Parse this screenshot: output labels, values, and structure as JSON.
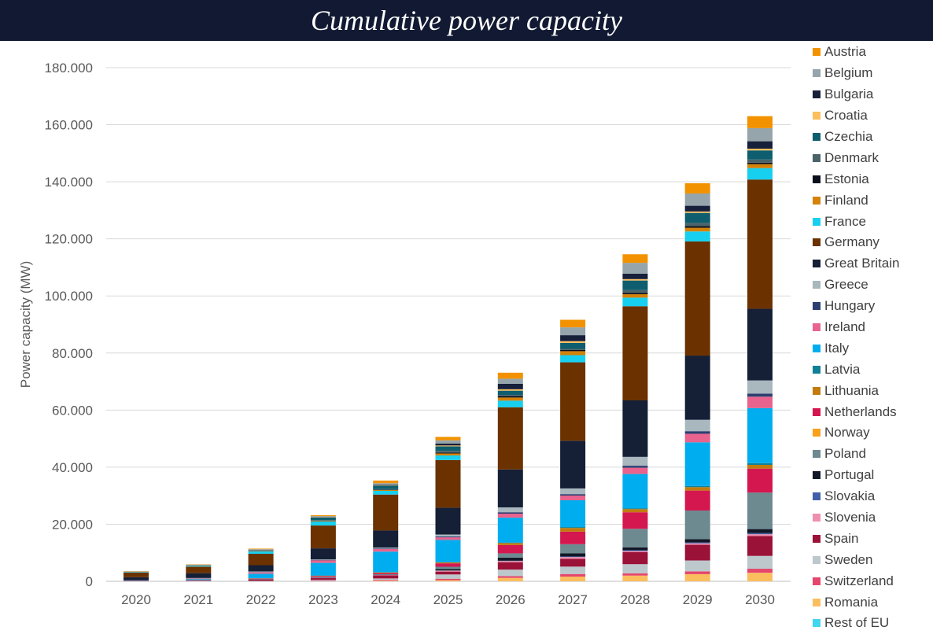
{
  "title": "Cumulative power capacity",
  "chart_data": {
    "type": "bar",
    "stacked": true,
    "title": "Cumulative power capacity",
    "xlabel": "",
    "ylabel": "Power capacity (MW)",
    "ylim": [
      0,
      180000
    ],
    "yticks": [
      0,
      20000,
      40000,
      60000,
      80000,
      100000,
      120000,
      140000,
      160000,
      180000
    ],
    "ytick_labels": [
      "0",
      "20.000",
      "40.000",
      "60.000",
      "80.000",
      "100.000",
      "120.000",
      "140.000",
      "160.000",
      "180.000"
    ],
    "grid": true,
    "legend_position": "right",
    "categories": [
      "2020",
      "2021",
      "2022",
      "2023",
      "2024",
      "2025",
      "2026",
      "2027",
      "2028",
      "2029",
      "2030"
    ],
    "series": [
      {
        "name": "Austria",
        "color": "#f39200",
        "values": [
          100,
          100,
          200,
          300,
          900,
          1200,
          2100,
          2650,
          3000,
          3600,
          4200
        ]
      },
      {
        "name": "Belgium",
        "color": "#95a5ab",
        "values": [
          100,
          100,
          250,
          300,
          600,
          1100,
          1800,
          2750,
          3800,
          4300,
          4600
        ]
      },
      {
        "name": "Bulgaria",
        "color": "#17203a",
        "values": [
          0,
          50,
          50,
          100,
          200,
          700,
          1900,
          2100,
          1900,
          2000,
          2600
        ]
      },
      {
        "name": "Croatia",
        "color": "#fbbf5d",
        "values": [
          0,
          0,
          50,
          100,
          100,
          300,
          500,
          600,
          500,
          500,
          600
        ]
      },
      {
        "name": "Czechia",
        "color": "#0e5e6f",
        "values": [
          0,
          0,
          100,
          900,
          1200,
          1600,
          1500,
          2100,
          3300,
          3500,
          3200
        ]
      },
      {
        "name": "Denmark",
        "color": "#4a6369",
        "values": [
          100,
          100,
          200,
          200,
          200,
          600,
          400,
          400,
          1000,
          1100,
          1100
        ]
      },
      {
        "name": "Estonia",
        "color": "#0b0f1c",
        "values": [
          0,
          50,
          50,
          100,
          100,
          300,
          500,
          400,
          500,
          600,
          500
        ]
      },
      {
        "name": "Finland",
        "color": "#d4820a",
        "values": [
          50,
          100,
          100,
          200,
          300,
          700,
          1100,
          1400,
          1200,
          1300,
          1400
        ]
      },
      {
        "name": "France",
        "color": "#17d0f0",
        "values": [
          150,
          300,
          800,
          1400,
          1300,
          1600,
          2300,
          2500,
          3000,
          3500,
          4000
        ]
      },
      {
        "name": "Germany",
        "color": "#6b3200",
        "values": [
          1600,
          2300,
          4000,
          8000,
          12600,
          16700,
          21800,
          27500,
          33000,
          40000,
          45300
        ]
      },
      {
        "name": "Great Britain",
        "color": "#151f36",
        "values": [
          1100,
          1700,
          2200,
          3900,
          6000,
          9400,
          13300,
          16700,
          19800,
          22500,
          25100
        ]
      },
      {
        "name": "Greece",
        "color": "#a9b7bf",
        "values": [
          50,
          100,
          200,
          200,
          300,
          700,
          1700,
          2000,
          3100,
          4000,
          4600
        ]
      },
      {
        "name": "Hungary",
        "color": "#2c3f70",
        "values": [
          0,
          100,
          100,
          100,
          200,
          300,
          500,
          500,
          700,
          900,
          1100
        ]
      },
      {
        "name": "Ireland",
        "color": "#e8638d",
        "values": [
          50,
          100,
          500,
          900,
          900,
          900,
          1400,
          1650,
          2200,
          3000,
          4000
        ]
      },
      {
        "name": "Italy",
        "color": "#00aeef",
        "values": [
          100,
          200,
          1600,
          4400,
          7200,
          7800,
          8700,
          9400,
          12000,
          15300,
          19300
        ]
      },
      {
        "name": "Latvia",
        "color": "#0f8196",
        "values": [
          0,
          0,
          0,
          100,
          100,
          100,
          200,
          300,
          300,
          400,
          600
        ]
      },
      {
        "name": "Lithuania",
        "color": "#c27b0e",
        "values": [
          0,
          50,
          100,
          100,
          200,
          300,
          700,
          1300,
          1100,
          1200,
          1300
        ]
      },
      {
        "name": "Netherlands",
        "color": "#d4174f",
        "values": [
          50,
          100,
          100,
          300,
          400,
          1200,
          2900,
          4400,
          5800,
          7000,
          8400
        ]
      },
      {
        "name": "Norway",
        "color": "#f9a11b",
        "values": [
          0,
          0,
          0,
          0,
          0,
          0,
          0,
          0,
          0,
          0,
          0
        ]
      },
      {
        "name": "Poland",
        "color": "#6c8a90",
        "values": [
          0,
          0,
          0,
          100,
          100,
          800,
          1500,
          3200,
          6500,
          10000,
          12800
        ]
      },
      {
        "name": "Portugal",
        "color": "#111827",
        "values": [
          0,
          50,
          100,
          100,
          100,
          500,
          1100,
          1100,
          1000,
          1200,
          1400
        ]
      },
      {
        "name": "Slovakia",
        "color": "#3f5fa8",
        "values": [
          0,
          200,
          50,
          100,
          100,
          100,
          100,
          200,
          300,
          300,
          400
        ]
      },
      {
        "name": "Slovenia",
        "color": "#ef8fae",
        "values": [
          0,
          0,
          50,
          50,
          100,
          300,
          400,
          600,
          400,
          500,
          600
        ]
      },
      {
        "name": "Spain",
        "color": "#9b1238",
        "values": [
          50,
          100,
          500,
          700,
          1100,
          1000,
          2600,
          2750,
          4200,
          5500,
          7000
        ]
      },
      {
        "name": "Sweden",
        "color": "#bcc8cc",
        "values": [
          0,
          100,
          100,
          300,
          500,
          1500,
          2300,
          2600,
          3200,
          3800,
          4500
        ]
      },
      {
        "name": "Switzerland",
        "color": "#e5466c",
        "values": [
          50,
          50,
          50,
          200,
          300,
          500,
          600,
          900,
          800,
          1000,
          1400
        ]
      },
      {
        "name": "Romania",
        "color": "#fbbe5f",
        "values": [
          0,
          0,
          0,
          0,
          200,
          400,
          1200,
          1650,
          2000,
          2500,
          3000
        ]
      },
      {
        "name": "Rest of EU",
        "color": "#42d5f0",
        "values": [
          0,
          0,
          0,
          0,
          0,
          0,
          0,
          0,
          0,
          0,
          0
        ]
      }
    ]
  }
}
